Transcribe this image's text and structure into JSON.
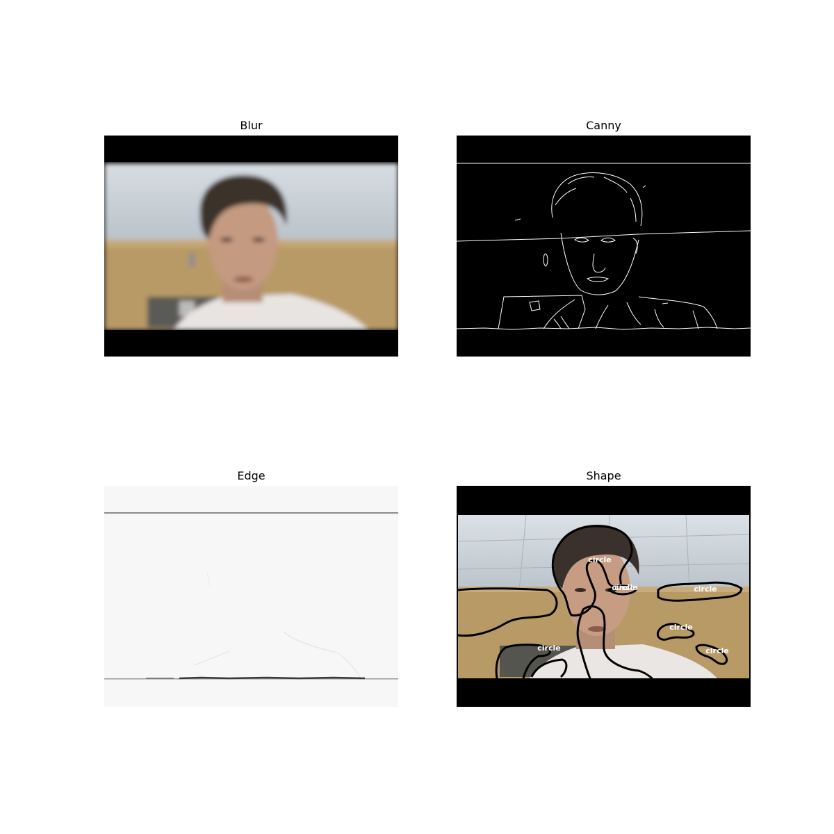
{
  "panels": [
    {
      "id": "blur",
      "title": "Blur"
    },
    {
      "id": "canny",
      "title": "Canny"
    },
    {
      "id": "edge",
      "title": "Edge"
    },
    {
      "id": "shape",
      "title": "Shape"
    }
  ],
  "shape_labels": [
    "circle",
    "circle",
    "circle",
    "circle",
    "circle",
    "circle",
    "circle"
  ],
  "colors": {
    "letterbox": "#000000",
    "wall": "#b89a66",
    "ceiling": "#c9d2d9",
    "skin": "#c49a80",
    "hair": "#3a312c",
    "shirt": "#e8e4e2",
    "edge_background": "#f7f7f7",
    "contour": "#000000",
    "label": "#ffffff"
  }
}
